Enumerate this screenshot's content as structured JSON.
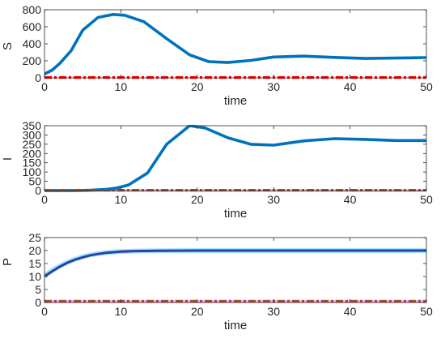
{
  "chart_data": [
    {
      "type": "line",
      "ylabel": "S",
      "xlabel": "time",
      "xlim": [
        0,
        50
      ],
      "ylim": [
        0,
        800
      ],
      "xticks": [
        0,
        10,
        20,
        30,
        40,
        50
      ],
      "yticks": [
        0,
        200,
        400,
        600,
        800
      ],
      "grid": false,
      "series": [
        {
          "color": "#0072bd",
          "style": "solid",
          "x": [
            0,
            1,
            2,
            3.5,
            5,
            7,
            9,
            10.5,
            13,
            16,
            19,
            21.5,
            24,
            27,
            30,
            34,
            38,
            42,
            46,
            50
          ],
          "y": [
            45,
            90,
            170,
            320,
            560,
            710,
            745,
            735,
            660,
            460,
            270,
            190,
            180,
            205,
            245,
            255,
            240,
            228,
            232,
            238
          ]
        },
        {
          "color": "#ff0000",
          "style": "dashdot",
          "x": [
            0,
            50
          ],
          "y": [
            4,
            4
          ]
        }
      ]
    },
    {
      "type": "line",
      "ylabel": "I",
      "xlabel": "time",
      "xlim": [
        0,
        50
      ],
      "ylim": [
        0,
        350
      ],
      "xticks": [
        0,
        10,
        20,
        30,
        40,
        50
      ],
      "yticks": [
        0,
        50,
        100,
        150,
        200,
        250,
        300,
        350
      ],
      "grid": false,
      "series": [
        {
          "color": "#ffb6f0",
          "style": "solid",
          "x": [
            0,
            50
          ],
          "y": [
            -2,
            -2
          ]
        },
        {
          "color": "#0072bd",
          "style": "solid",
          "x": [
            0,
            2,
            4,
            6,
            8,
            9.5,
            11,
            13.5,
            16,
            19,
            21,
            24,
            27,
            30,
            34,
            38,
            42,
            46,
            50
          ],
          "y": [
            0,
            0,
            0,
            2,
            6,
            14,
            30,
            95,
            250,
            350,
            338,
            285,
            250,
            245,
            268,
            280,
            276,
            270,
            270
          ]
        },
        {
          "color": "#a0522d",
          "style": "dashdot",
          "x": [
            0,
            50
          ],
          "y": [
            2,
            2
          ]
        }
      ]
    },
    {
      "type": "line",
      "ylabel": "P",
      "xlabel": "time",
      "xlim": [
        0,
        50
      ],
      "ylim": [
        0,
        25
      ],
      "xticks": [
        0,
        10,
        20,
        30,
        40,
        50
      ],
      "yticks": [
        0,
        5,
        10,
        15,
        20,
        25
      ],
      "grid": false,
      "series": [
        {
          "color": "#ffb6f0",
          "style": "solid",
          "x": [
            0,
            50
          ],
          "y": [
            0.4,
            0.4
          ]
        },
        {
          "color": "#9fe7ff",
          "style": "solid",
          "x": [
            0,
            1,
            2,
            3,
            4,
            5,
            6,
            7,
            8,
            10,
            12,
            15,
            20,
            30,
            40,
            50
          ],
          "y": [
            10.3,
            12.3,
            14.0,
            15.5,
            16.7,
            17.6,
            18.3,
            18.8,
            19.2,
            19.6,
            19.8,
            19.9,
            20,
            20,
            20,
            20
          ]
        },
        {
          "color": "#2e3fa8",
          "style": "solid",
          "x": [
            0,
            1,
            2,
            3,
            4,
            5,
            6,
            7,
            8,
            10,
            12,
            15,
            20,
            30,
            40,
            50
          ],
          "y": [
            10.1,
            12.0,
            13.8,
            15.3,
            16.5,
            17.4,
            18.2,
            18.7,
            19.1,
            19.6,
            19.8,
            19.9,
            20,
            20,
            20,
            20
          ]
        },
        {
          "color": "#a0522d",
          "style": "dashdot",
          "x": [
            0,
            50
          ],
          "y": [
            0.5,
            0.5
          ]
        }
      ]
    }
  ]
}
